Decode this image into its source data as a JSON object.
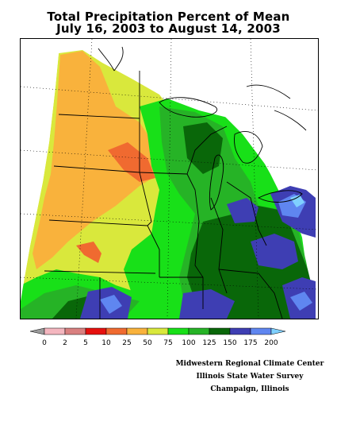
{
  "title": "Total Precipitation Percent of Mean",
  "subtitle": "July 16, 2003 to August 14, 2003",
  "legend": {
    "labels": [
      "0",
      "2",
      "5",
      "10",
      "25",
      "50",
      "75",
      "100",
      "125",
      "150",
      "175",
      "200"
    ],
    "colors": [
      "#9b9b9b",
      "#f4b6bf",
      "#d98080",
      "#e6100e",
      "#f06a30",
      "#f9b23c",
      "#d9e83c",
      "#18e018",
      "#26b326",
      "#096709",
      "#3e3eb3",
      "#5f86f0",
      "#7fd0ff"
    ]
  },
  "credits": {
    "line1": "Midwestern Regional Climate Center",
    "line2": "Illinois State Water Survey",
    "line3": "Champaign, Illinois"
  }
}
